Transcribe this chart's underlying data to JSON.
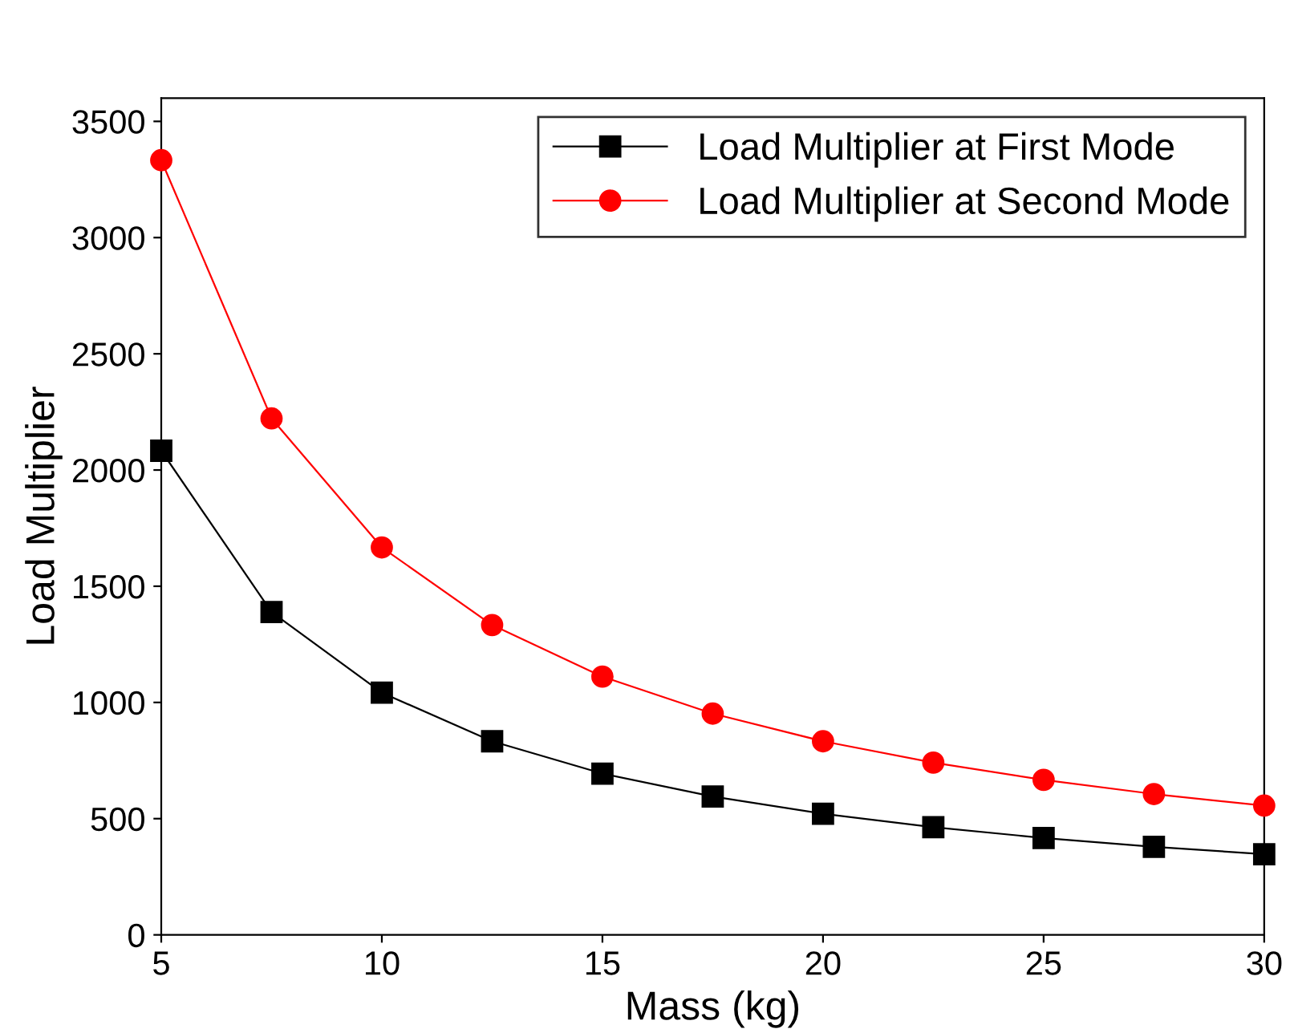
{
  "chart_data": {
    "type": "line",
    "xlabel": "Mass (kg)",
    "ylabel": "Load Multiplier",
    "x": [
      5,
      7.5,
      10,
      12.5,
      15,
      17.5,
      20,
      22.5,
      25,
      27.5,
      30
    ],
    "series": [
      {
        "name": "Load Multiplier at First Mode",
        "color": "#000000",
        "marker": "square",
        "values": [
          2083,
          1389,
          1042,
          833,
          694,
          595,
          521,
          463,
          417,
          379,
          347
        ]
      },
      {
        "name": "Load Multiplier at Second Mode",
        "color": "#ff0000",
        "marker": "circle",
        "values": [
          3333,
          2222,
          1667,
          1333,
          1111,
          952,
          833,
          741,
          667,
          606,
          556
        ]
      }
    ],
    "xlim": [
      5,
      30
    ],
    "xticks": [
      5,
      10,
      15,
      20,
      25,
      30
    ],
    "ylim": [
      0,
      3600
    ],
    "yticks": [
      0,
      500,
      1000,
      1500,
      2000,
      2500,
      3000,
      3500
    ],
    "grid": false,
    "legend": "top right",
    "line_style": "solid"
  }
}
